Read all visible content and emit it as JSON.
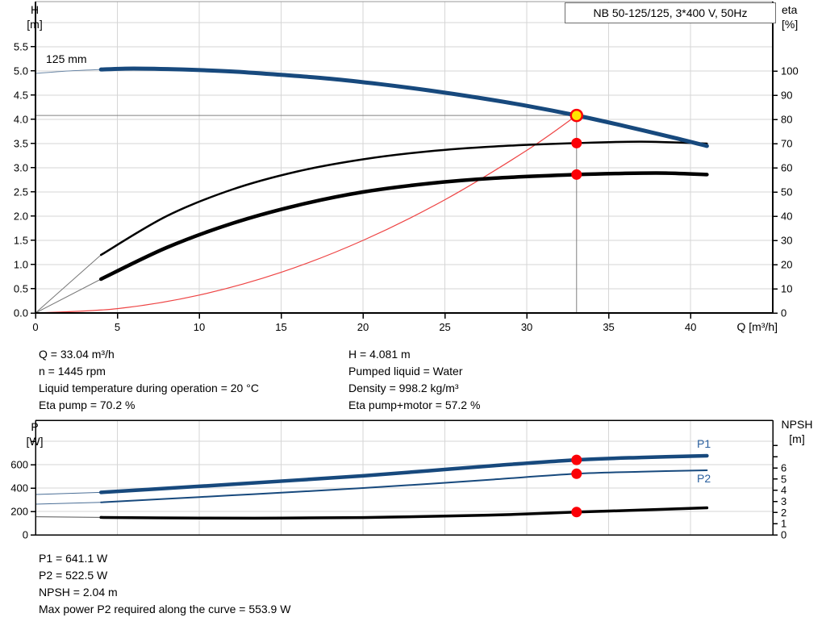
{
  "title": "NB 50-125/125, 3*400 V, 50Hz",
  "colors": {
    "curve_blue": "#17497d",
    "curve_black": "#000000",
    "system_red": "#ee4444",
    "marker_red": "#fb0007",
    "duty_yellow": "#ffe400",
    "grid": "#d6d6d6",
    "axis": "#000000",
    "duty_line": "#808080",
    "label_blue": "#2a5f9e",
    "border_gray": "#999999",
    "lead_gray": "#777777",
    "lead_blue": "#6b87a6"
  },
  "top_chart": {
    "left_axis_title": [
      "H",
      "[m]"
    ],
    "right_axis_title": [
      "eta",
      "[%]"
    ],
    "x_axis_title": "Q [m³/h]",
    "curve_label": "125 mm",
    "x_ticks": [
      [
        0,
        "0"
      ],
      [
        5,
        "5"
      ],
      [
        10,
        "10"
      ],
      [
        15,
        "15"
      ],
      [
        20,
        "20"
      ],
      [
        25,
        "25"
      ],
      [
        30,
        "30"
      ],
      [
        35,
        "35"
      ],
      [
        40,
        "40"
      ]
    ],
    "left_ticks": [
      [
        0,
        "0.0"
      ],
      [
        0.5,
        "0.5"
      ],
      [
        1,
        "1.0"
      ],
      [
        1.5,
        "1.5"
      ],
      [
        2,
        "2.0"
      ],
      [
        2.5,
        "2.5"
      ],
      [
        3,
        "3.0"
      ],
      [
        3.5,
        "3.5"
      ],
      [
        4,
        "4.0"
      ],
      [
        4.5,
        "4.5"
      ],
      [
        5,
        "5.0"
      ],
      [
        5.5,
        "5.5"
      ]
    ],
    "right_ticks": [
      [
        0,
        "0"
      ],
      [
        10,
        "10"
      ],
      [
        20,
        "20"
      ],
      [
        30,
        "30"
      ],
      [
        40,
        "40"
      ],
      [
        50,
        "50"
      ],
      [
        60,
        "60"
      ],
      [
        70,
        "70"
      ],
      [
        80,
        "80"
      ],
      [
        90,
        "90"
      ],
      [
        100,
        "100"
      ]
    ]
  },
  "bottom_chart": {
    "left_axis_title": [
      "P",
      "[W]"
    ],
    "right_axis_title": [
      "NPSH",
      "[m]"
    ],
    "p1_label": "P1",
    "p2_label": "P2",
    "left_ticks": [
      [
        0,
        "0"
      ],
      [
        200,
        "200"
      ],
      [
        400,
        "400"
      ],
      [
        600,
        "600"
      ],
      [
        800,
        ""
      ]
    ],
    "right_ticks": [
      [
        0,
        "0"
      ],
      [
        1,
        "1"
      ],
      [
        2,
        "2"
      ],
      [
        3,
        "3"
      ],
      [
        4,
        "4"
      ],
      [
        5,
        "5"
      ],
      [
        6,
        "6"
      ],
      [
        7,
        ""
      ],
      [
        8,
        ""
      ]
    ]
  },
  "info_top": {
    "left": [
      "Q = 33.04 m³/h",
      "n = 1445 rpm",
      "Liquid temperature during operation = 20 °C",
      "Eta pump = 70.2 %"
    ],
    "right": [
      "H = 4.081 m",
      "Pumped liquid = Water",
      "Density = 998.2 kg/m³",
      "Eta pump+motor = 57.2 %"
    ]
  },
  "info_bottom": [
    "P1 = 641.1 W",
    "P2 = 522.5 W",
    "NPSH = 2.04 m",
    "Max power P2 required along the curve = 553.9 W"
  ],
  "chart_data": [
    {
      "type": "line",
      "title": "NB 50-125/125, 3*400 V, 50Hz",
      "xlabel": "Q [m³/h]",
      "ylabel_left": "H [m]",
      "ylabel_right": "eta [%]",
      "xlim": [
        0,
        45.02
      ],
      "ylim_left": [
        0,
        6.433
      ],
      "ylim_right": [
        0,
        128.67
      ],
      "x_gridlines": [
        5,
        10,
        15,
        20,
        25,
        30,
        35,
        40
      ],
      "y_gridlines": [
        0.5,
        1,
        1.5,
        2,
        2.5,
        3,
        3.5,
        4,
        4.5,
        5,
        5.5,
        6
      ],
      "duty_point": {
        "q": 33.04,
        "h": 4.081
      },
      "series": [
        {
          "name": "system-curve",
          "axis": "left",
          "color": "#ee4444",
          "width": 1.2,
          "points": [
            [
              0,
              0
            ],
            [
              5,
              0.09
            ],
            [
              10,
              0.37
            ],
            [
              15,
              0.84
            ],
            [
              20,
              1.5
            ],
            [
              25,
              2.34
            ],
            [
              30,
              3.36
            ],
            [
              33.04,
              4.081
            ]
          ]
        },
        {
          "name": "eta-pump",
          "axis": "right",
          "color": "#000000",
          "width": 2.5,
          "thin_until": 4,
          "thin_color": "#777777",
          "points": [
            [
              0,
              0
            ],
            [
              4,
              24
            ],
            [
              8,
              40
            ],
            [
              12,
              51
            ],
            [
              16,
              58.5
            ],
            [
              20,
              63.5
            ],
            [
              24,
              66.8
            ],
            [
              28,
              68.8
            ],
            [
              33.04,
              70.2
            ],
            [
              37,
              70.8
            ],
            [
              41,
              70
            ]
          ]
        },
        {
          "name": "eta-pump-motor",
          "axis": "right",
          "color": "#000000",
          "width": 4.5,
          "thin_until": 4,
          "thin_color": "#777777",
          "points": [
            [
              0,
              0
            ],
            [
              4,
              14
            ],
            [
              8,
              27
            ],
            [
              12,
              37
            ],
            [
              16,
              44.5
            ],
            [
              20,
              50
            ],
            [
              24,
              53.5
            ],
            [
              28,
              55.7
            ],
            [
              33.04,
              57.2
            ],
            [
              36,
              57.7
            ],
            [
              38.5,
              57.8
            ],
            [
              41,
              57.2
            ]
          ]
        },
        {
          "name": "head-125mm",
          "axis": "left",
          "color": "#17497d",
          "width": 5,
          "thin_until": 4,
          "thin_color": "#6b87a6",
          "points": [
            [
              0,
              4.95
            ],
            [
              2,
              5.0
            ],
            [
              4,
              5.03
            ],
            [
              6,
              5.05
            ],
            [
              9,
              5.03
            ],
            [
              12,
              4.99
            ],
            [
              15,
              4.92
            ],
            [
              18,
              4.84
            ],
            [
              21,
              4.73
            ],
            [
              24,
              4.6
            ],
            [
              27,
              4.45
            ],
            [
              30,
              4.28
            ],
            [
              33.04,
              4.081
            ],
            [
              36,
              3.86
            ],
            [
              39,
              3.62
            ],
            [
              41,
              3.45
            ]
          ]
        }
      ],
      "markers": [
        {
          "style": "dot",
          "axis": "right",
          "q": 33.04,
          "v": 70.2
        },
        {
          "style": "dot",
          "axis": "right",
          "q": 33.04,
          "v": 57.2
        },
        {
          "style": "duty",
          "axis": "left",
          "q": 33.04,
          "v": 4.081
        }
      ]
    },
    {
      "type": "line",
      "xlabel": "",
      "ylabel_left": "P [W]",
      "ylabel_right": "NPSH [m]",
      "xlim": [
        0,
        45.02
      ],
      "ylim_left": [
        0,
        980
      ],
      "ylim_right": [
        0,
        10.27
      ],
      "x_gridlines": [
        5,
        10,
        15,
        20,
        25,
        30,
        35,
        40
      ],
      "y_gridlines": [
        200,
        400,
        600,
        800
      ],
      "series": [
        {
          "name": "p1-power",
          "axis": "left",
          "color": "#17497d",
          "width": 4.5,
          "thin_until": 4,
          "thin_color": "#4a6e96",
          "points": [
            [
              0,
              345
            ],
            [
              4,
              363
            ],
            [
              8,
              398
            ],
            [
              12,
              432
            ],
            [
              16,
              468
            ],
            [
              20,
              505
            ],
            [
              24,
              548
            ],
            [
              28,
              592
            ],
            [
              33.04,
              641.1
            ],
            [
              37,
              662
            ],
            [
              41,
              676
            ]
          ]
        },
        {
          "name": "p2-power",
          "axis": "left",
          "color": "#17497d",
          "width": 2,
          "thin_until": 4,
          "thin_color": "#4a6e96",
          "points": [
            [
              0,
              262
            ],
            [
              4,
              278
            ],
            [
              8,
              308
            ],
            [
              12,
              338
            ],
            [
              16,
              368
            ],
            [
              20,
              400
            ],
            [
              24,
              436
            ],
            [
              28,
              474
            ],
            [
              33.04,
              522.5
            ],
            [
              37,
              540
            ],
            [
              41,
              552
            ]
          ]
        },
        {
          "name": "npsh",
          "axis": "right",
          "color": "#000000",
          "width": 3.5,
          "thin_until": 4,
          "thin_color": "#555555",
          "points": [
            [
              0,
              1.62
            ],
            [
              4,
              1.56
            ],
            [
              10,
              1.5
            ],
            [
              15,
              1.5
            ],
            [
              20,
              1.55
            ],
            [
              25,
              1.68
            ],
            [
              29,
              1.82
            ],
            [
              33.04,
              2.04
            ],
            [
              37,
              2.22
            ],
            [
              41,
              2.42
            ]
          ]
        }
      ],
      "markers": [
        {
          "style": "dot",
          "axis": "left",
          "q": 33.04,
          "v": 641.1
        },
        {
          "style": "dot",
          "axis": "left",
          "q": 33.04,
          "v": 522.5
        },
        {
          "style": "dot",
          "axis": "right",
          "q": 33.04,
          "v": 2.04
        }
      ]
    }
  ]
}
